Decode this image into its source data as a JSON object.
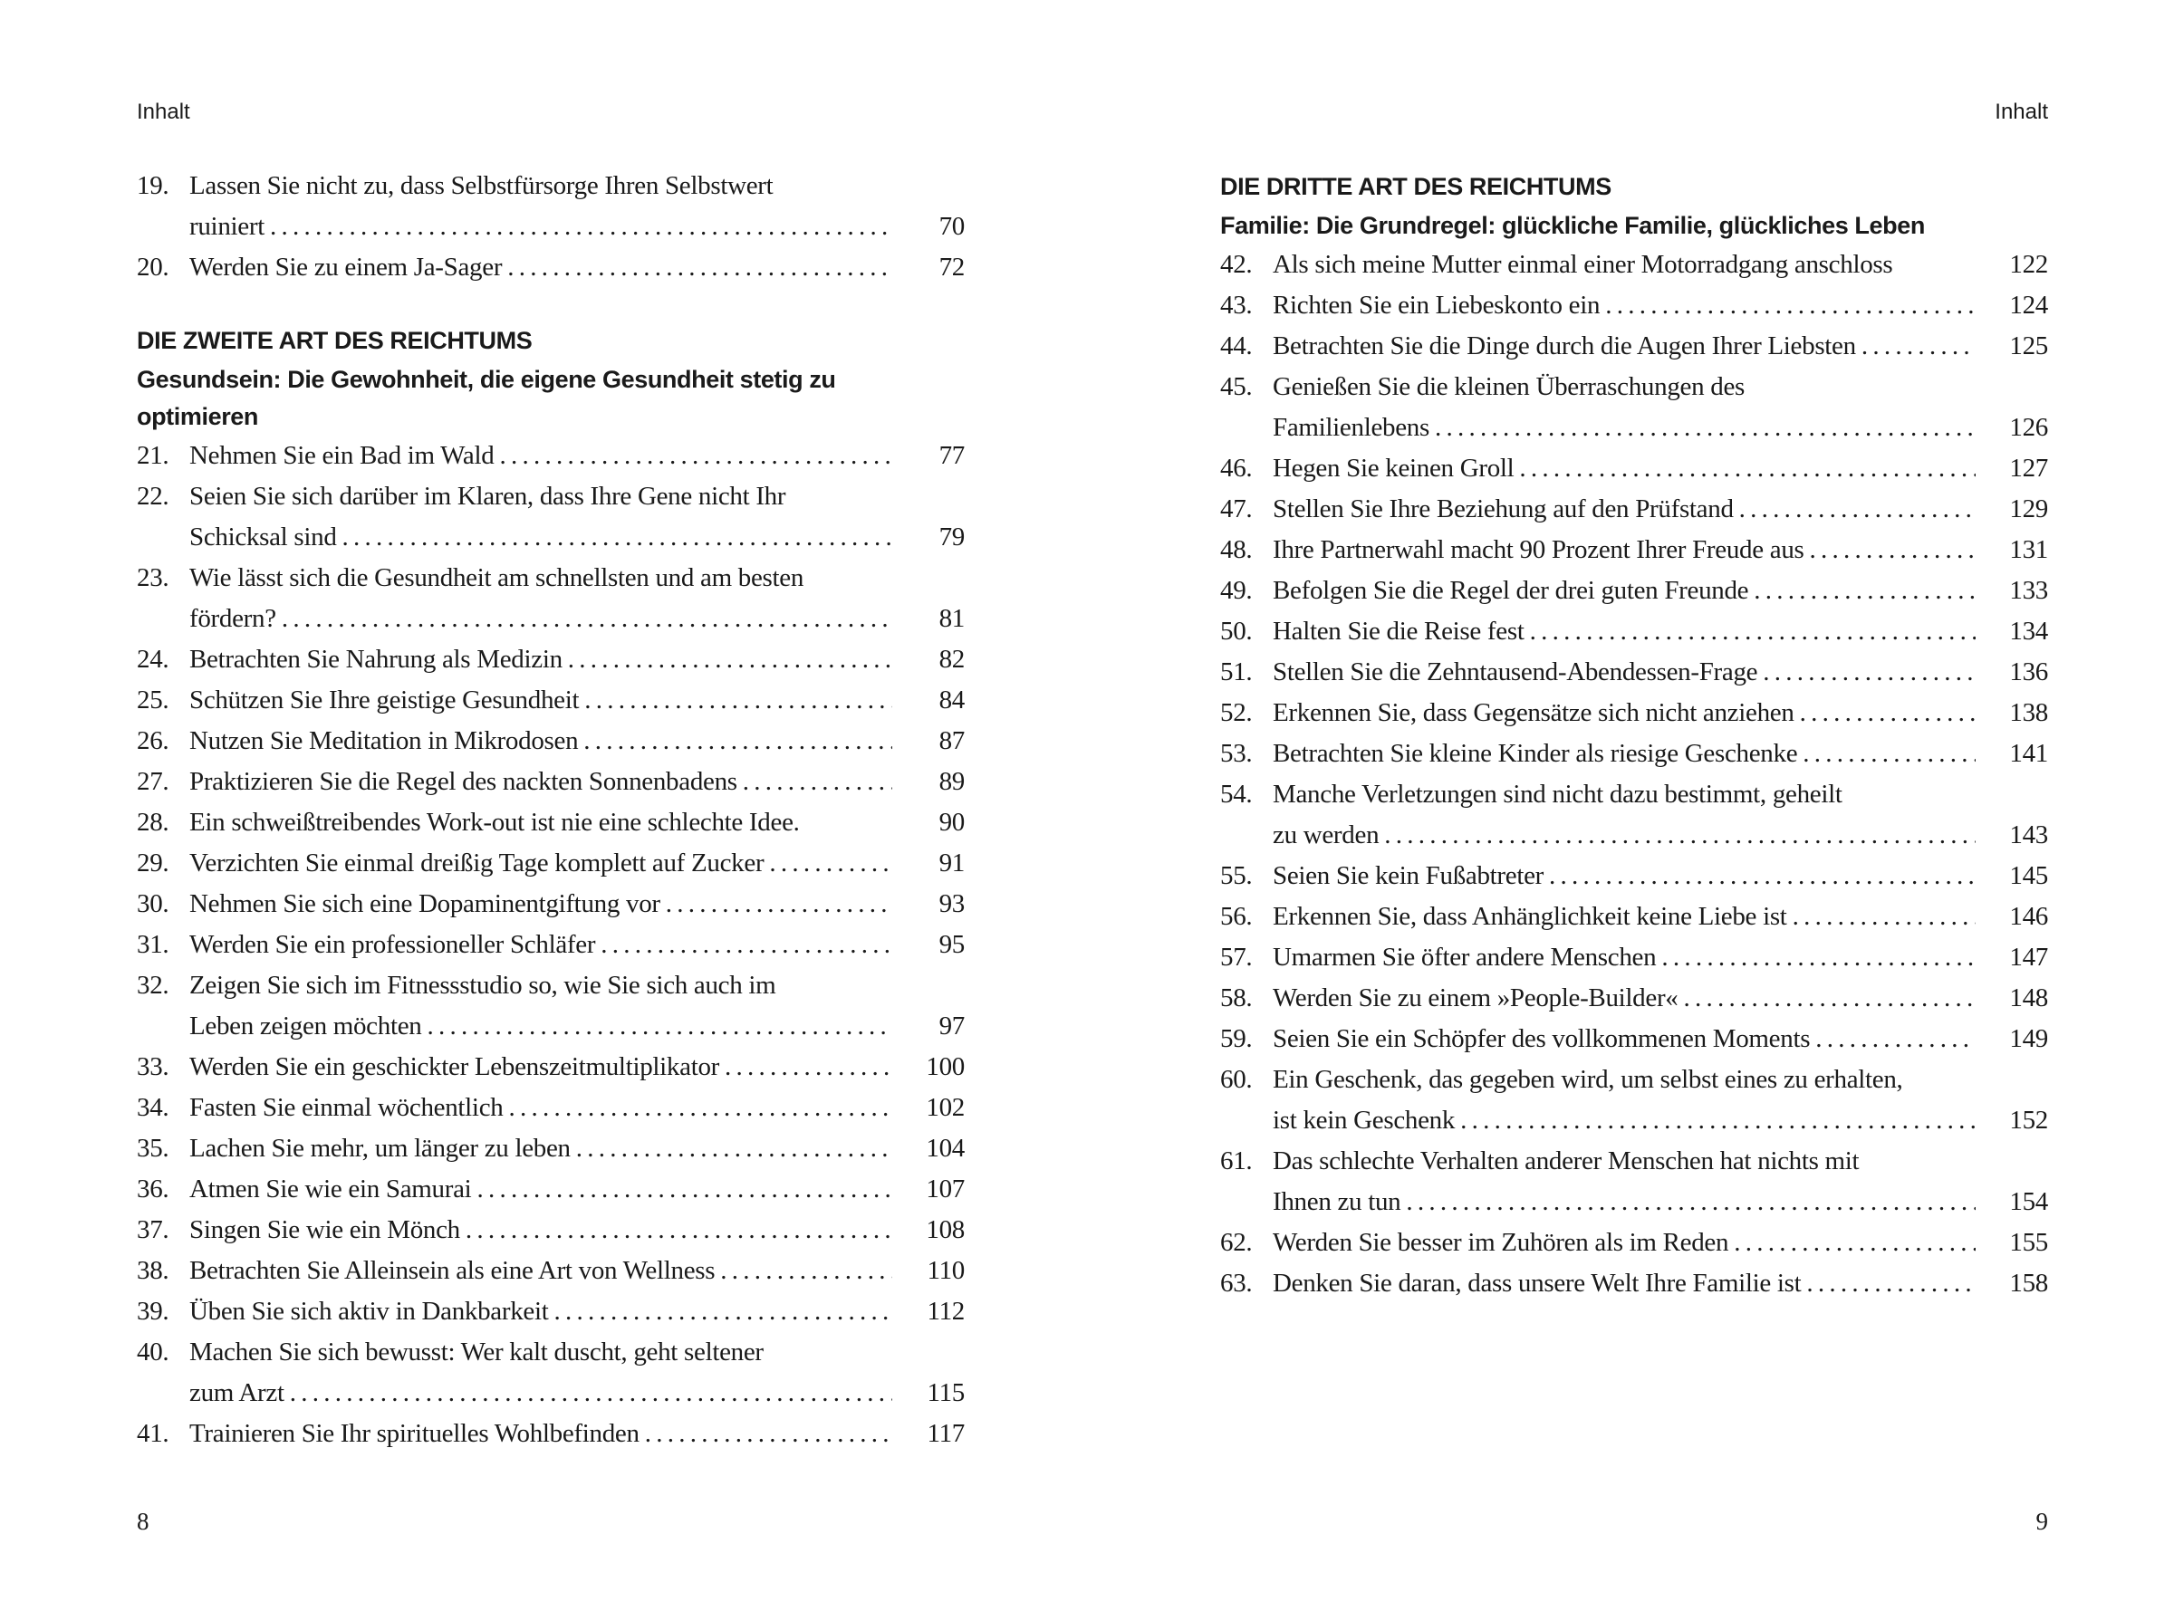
{
  "left_page": {
    "running_head": "Inhalt",
    "folio": "8",
    "blocks": [
      {
        "type": "entry",
        "num": "19.",
        "lines": [
          "Lassen Sie nicht zu, dass Selbstfürsorge Ihren Selbstwert",
          "ruiniert"
        ],
        "page": "70"
      },
      {
        "type": "entry",
        "num": "20.",
        "lines": [
          "Werden Sie zu einem Ja-Sager"
        ],
        "page": "72"
      },
      {
        "type": "gap"
      },
      {
        "type": "h1",
        "text": "DIE ZWEITE ART DES REICHTUMS"
      },
      {
        "type": "h2",
        "text": "Gesundsein: Die Gewohnheit, die eigene Gesundheit stetig zu"
      },
      {
        "type": "h2",
        "text": "optimieren"
      },
      {
        "type": "entry",
        "num": "21.",
        "lines": [
          "Nehmen Sie ein Bad im Wald"
        ],
        "page": "77"
      },
      {
        "type": "entry",
        "num": "22.",
        "lines": [
          "Seien Sie sich darüber im Klaren, dass Ihre Gene nicht Ihr",
          "Schicksal sind"
        ],
        "page": "79"
      },
      {
        "type": "entry",
        "num": "23.",
        "lines": [
          "Wie lässt sich die Gesundheit am schnellsten und am besten",
          "fördern?"
        ],
        "page": "81"
      },
      {
        "type": "entry",
        "num": "24.",
        "lines": [
          "Betrachten Sie Nahrung als Medizin"
        ],
        "page": "82"
      },
      {
        "type": "entry",
        "num": "25.",
        "lines": [
          "Schützen Sie Ihre geistige Gesundheit"
        ],
        "page": "84"
      },
      {
        "type": "entry",
        "num": "26.",
        "lines": [
          "Nutzen Sie Meditation in Mikrodosen"
        ],
        "page": "87"
      },
      {
        "type": "entry",
        "num": "27.",
        "lines": [
          "Praktizieren Sie die Regel des nackten Sonnenbadens"
        ],
        "page": "89"
      },
      {
        "type": "entry",
        "num": "28.",
        "lines": [
          "Ein schweißtreibendes Work-out ist nie eine schlechte Idee."
        ],
        "page": "90",
        "noleader": true
      },
      {
        "type": "entry",
        "num": "29.",
        "lines": [
          "Verzichten Sie einmal dreißig Tage komplett auf Zucker"
        ],
        "page": "91"
      },
      {
        "type": "entry",
        "num": "30.",
        "lines": [
          "Nehmen Sie sich eine Dopaminentgiftung vor"
        ],
        "page": "93"
      },
      {
        "type": "entry",
        "num": "31.",
        "lines": [
          "Werden Sie ein professioneller Schläfer"
        ],
        "page": "95"
      },
      {
        "type": "entry",
        "num": "32.",
        "lines": [
          "Zeigen Sie sich im Fitnessstudio so, wie Sie sich auch im",
          "Leben zeigen möchten"
        ],
        "page": "97"
      },
      {
        "type": "entry",
        "num": "33.",
        "lines": [
          "Werden Sie ein geschickter Lebenszeitmultiplikator"
        ],
        "page": "100"
      },
      {
        "type": "entry",
        "num": "34.",
        "lines": [
          "Fasten Sie einmal wöchentlich"
        ],
        "page": "102"
      },
      {
        "type": "entry",
        "num": "35.",
        "lines": [
          "Lachen Sie mehr, um länger zu leben"
        ],
        "page": "104"
      },
      {
        "type": "entry",
        "num": "36.",
        "lines": [
          "Atmen Sie wie ein Samurai"
        ],
        "page": "107"
      },
      {
        "type": "entry",
        "num": "37.",
        "lines": [
          "Singen Sie wie ein Mönch"
        ],
        "page": "108"
      },
      {
        "type": "entry",
        "num": "38.",
        "lines": [
          "Betrachten Sie Alleinsein als eine Art von Wellness"
        ],
        "page": "110"
      },
      {
        "type": "entry",
        "num": "39.",
        "lines": [
          "Üben Sie sich aktiv in Dankbarkeit"
        ],
        "page": "112"
      },
      {
        "type": "entry",
        "num": "40.",
        "lines": [
          "Machen Sie sich bewusst: Wer kalt duscht, geht seltener",
          "zum Arzt"
        ],
        "page": "115"
      },
      {
        "type": "entry",
        "num": "41.",
        "lines": [
          "Trainieren Sie Ihr spirituelles Wohlbefinden"
        ],
        "page": "117"
      }
    ]
  },
  "right_page": {
    "running_head": "Inhalt",
    "folio": "9",
    "blocks": [
      {
        "type": "h1",
        "text": "DIE DRITTE ART DES REICHTUMS"
      },
      {
        "type": "h2",
        "text": "Familie: Die Grundregel: glückliche Familie, glückliches Leben"
      },
      {
        "type": "entry",
        "num": "42.",
        "lines": [
          "Als sich meine Mutter einmal einer Motorradgang anschloss"
        ],
        "page": "122",
        "noleader": true
      },
      {
        "type": "entry",
        "num": "43.",
        "lines": [
          "Richten Sie ein Liebeskonto ein"
        ],
        "page": "124"
      },
      {
        "type": "entry",
        "num": "44.",
        "lines": [
          "Betrachten Sie die Dinge durch die Augen Ihrer Liebsten"
        ],
        "page": "125"
      },
      {
        "type": "entry",
        "num": "45.",
        "lines": [
          "Genießen Sie die kleinen Überraschungen des",
          "Familienlebens"
        ],
        "page": "126"
      },
      {
        "type": "entry",
        "num": "46.",
        "lines": [
          "Hegen Sie keinen Groll"
        ],
        "page": "127"
      },
      {
        "type": "entry",
        "num": "47.",
        "lines": [
          "Stellen Sie Ihre Beziehung auf den Prüfstand"
        ],
        "page": "129"
      },
      {
        "type": "entry",
        "num": "48.",
        "lines": [
          "Ihre Partnerwahl macht 90 Prozent Ihrer Freude aus"
        ],
        "page": "131"
      },
      {
        "type": "entry",
        "num": "49.",
        "lines": [
          "Befolgen Sie die Regel der drei guten Freunde"
        ],
        "page": "133"
      },
      {
        "type": "entry",
        "num": "50.",
        "lines": [
          "Halten Sie die Reise fest"
        ],
        "page": "134"
      },
      {
        "type": "entry",
        "num": "51.",
        "lines": [
          "Stellen Sie die Zehntausend-Abendessen-Frage"
        ],
        "page": "136"
      },
      {
        "type": "entry",
        "num": "52.",
        "lines": [
          "Erkennen Sie, dass Gegensätze sich nicht anziehen"
        ],
        "page": "138"
      },
      {
        "type": "entry",
        "num": "53.",
        "lines": [
          "Betrachten Sie kleine Kinder als riesige Geschenke"
        ],
        "page": "141"
      },
      {
        "type": "entry",
        "num": "54.",
        "lines": [
          "Manche Verletzungen sind nicht dazu bestimmt, geheilt",
          "zu werden"
        ],
        "page": "143"
      },
      {
        "type": "entry",
        "num": "55.",
        "lines": [
          "Seien Sie kein Fußabtreter"
        ],
        "page": "145"
      },
      {
        "type": "entry",
        "num": "56.",
        "lines": [
          "Erkennen Sie, dass Anhänglichkeit keine Liebe ist"
        ],
        "page": "146"
      },
      {
        "type": "entry",
        "num": "57.",
        "lines": [
          "Umarmen Sie öfter andere Menschen"
        ],
        "page": "147"
      },
      {
        "type": "entry",
        "num": "58.",
        "lines": [
          "Werden Sie zu einem »People-Builder«"
        ],
        "page": "148"
      },
      {
        "type": "entry",
        "num": "59.",
        "lines": [
          "Seien Sie ein Schöpfer des vollkommenen Moments"
        ],
        "page": "149"
      },
      {
        "type": "entry",
        "num": "60.",
        "lines": [
          "Ein Geschenk, das gegeben wird, um selbst eines zu erhalten,",
          "ist kein Geschenk"
        ],
        "page": "152"
      },
      {
        "type": "entry",
        "num": "61.",
        "lines": [
          "Das schlechte Verhalten anderer Menschen hat nichts mit",
          "Ihnen zu tun"
        ],
        "page": "154"
      },
      {
        "type": "entry",
        "num": "62.",
        "lines": [
          "Werden Sie besser im Zuhören als im Reden"
        ],
        "page": "155"
      },
      {
        "type": "entry",
        "num": "63.",
        "lines": [
          "Denken Sie daran, dass unsere Welt Ihre Familie ist"
        ],
        "page": "158"
      }
    ]
  }
}
